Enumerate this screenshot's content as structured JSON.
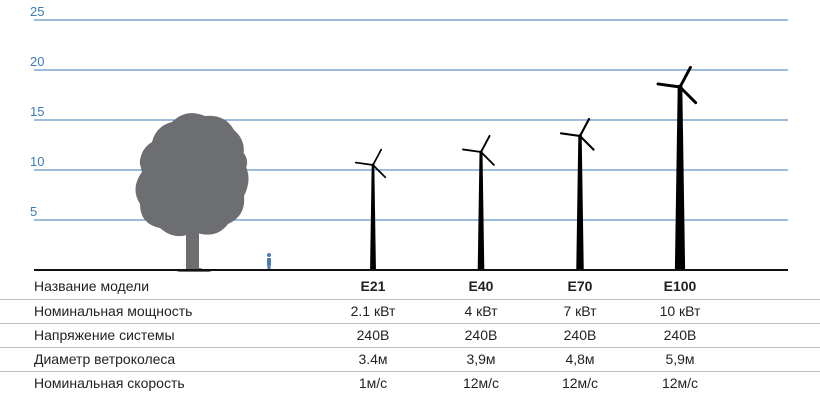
{
  "chart_data": {
    "type": "bar",
    "yticks": [
      5,
      10,
      15,
      20,
      25
    ],
    "ylim": [
      0,
      25
    ],
    "grid": true,
    "categories": [
      "E21",
      "E40",
      "E70",
      "E100"
    ],
    "values": [
      10.5,
      11.8,
      13.4,
      18.3
    ],
    "colors": {
      "grid": "#3d7ab8",
      "tick": "#3d7ab8",
      "turbine": "#000000",
      "tree": "#6d6e71",
      "person": "#4a7db5",
      "baseline": "#111111"
    }
  },
  "specs": {
    "row_labels": [
      "Название модели",
      "Номинальная мощность",
      "Напряжение системы",
      "Диаметр ветроколеса",
      "Номинальная скорость"
    ],
    "models": [
      "E21",
      "E40",
      "E70",
      "E100"
    ],
    "power": [
      "2.1 кВт",
      "4 кВт",
      "7 кВт",
      "10 кВт"
    ],
    "voltage": [
      "240В",
      "240В",
      "240В",
      "240В"
    ],
    "diameter": [
      "3.4м",
      "3,9м",
      "4,8м",
      "5,9м"
    ],
    "speed": [
      "1м/с",
      "12м/с",
      "12м/с",
      "12м/с"
    ]
  }
}
